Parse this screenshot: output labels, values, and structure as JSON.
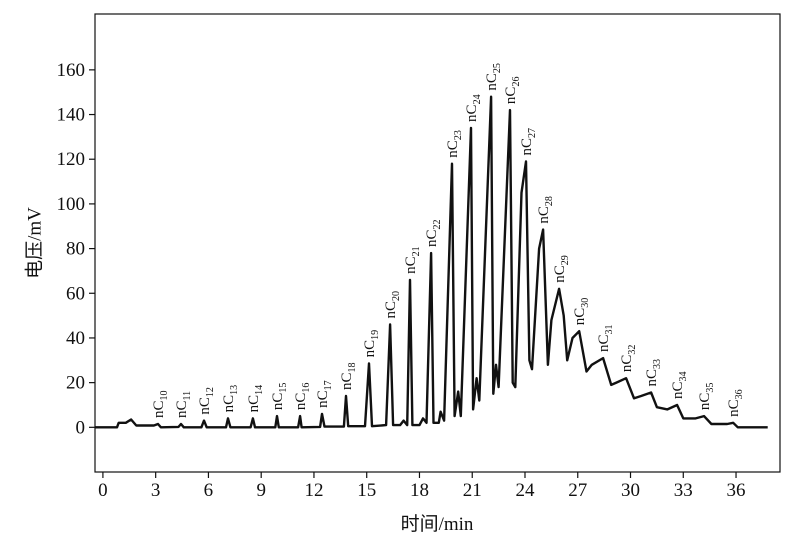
{
  "chart_data": {
    "type": "line",
    "xlabel": "时间/min",
    "ylabel": "电压/mV",
    "color": "#111111",
    "xlim": [
      -0.45,
      38.5
    ],
    "ylim": [
      -20,
      185
    ],
    "xticks": [
      0,
      3,
      6,
      9,
      12,
      15,
      18,
      21,
      24,
      27,
      30,
      33,
      36
    ],
    "yticks": [
      0,
      20,
      40,
      60,
      80,
      100,
      120,
      140,
      160
    ],
    "x": [
      -0.45,
      0.8,
      0.9,
      1.3,
      1.6,
      1.9,
      2.9,
      3.13,
      3.3,
      4.3,
      4.44,
      4.6,
      5.6,
      5.75,
      5.9,
      7.0,
      7.11,
      7.25,
      8.4,
      8.53,
      8.65,
      9.8,
      9.9,
      10.0,
      11.1,
      11.21,
      11.3,
      12.35,
      12.46,
      12.6,
      13.7,
      13.82,
      13.95,
      14.9,
      15.13,
      15.3,
      16.1,
      16.33,
      16.5,
      16.9,
      17.1,
      17.3,
      17.46,
      17.6,
      18.0,
      18.2,
      18.4,
      18.66,
      18.8,
      19.1,
      19.2,
      19.4,
      19.85,
      20.0,
      20.2,
      20.35,
      20.93,
      21.05,
      21.25,
      21.4,
      22.07,
      22.2,
      22.35,
      22.5,
      23.15,
      23.3,
      23.45,
      23.8,
      24.06,
      24.25,
      24.4,
      24.8,
      25.03,
      25.3,
      25.5,
      25.94,
      26.2,
      26.4,
      26.7,
      27.08,
      27.5,
      27.8,
      28.44,
      28.9,
      29.2,
      29.75,
      30.2,
      30.6,
      31.17,
      31.5,
      32.1,
      32.65,
      33.0,
      33.7,
      34.18,
      34.6,
      35.5,
      35.84,
      36.1,
      37.8
    ],
    "values": [
      0,
      0,
      2,
      2,
      3.5,
      0.8,
      0.8,
      1.5,
      0,
      0.2,
      1.5,
      0,
      0,
      3,
      0,
      0,
      4,
      0,
      0,
      4,
      0,
      0,
      5,
      0,
      0,
      5,
      0,
      0.2,
      6,
      0.3,
      0.3,
      14,
      0.5,
      0.5,
      28.6,
      0.5,
      1,
      46,
      1,
      1,
      3,
      1,
      66,
      1,
      1,
      4,
      2,
      78,
      2,
      2,
      7,
      3,
      118,
      5,
      16,
      5,
      134,
      8,
      22,
      12,
      148,
      15,
      28,
      18,
      142,
      20,
      18,
      105,
      119,
      30,
      26,
      80,
      88.5,
      28,
      48,
      62,
      50,
      30,
      40,
      43,
      25,
      28,
      31,
      19,
      20,
      22,
      13,
      14,
      15.6,
      9,
      8,
      10,
      4,
      4,
      5,
      1.5,
      1.5,
      2,
      0,
      0
    ],
    "annotations": [
      {
        "text": "nC",
        "sub": "10",
        "x": 3.13,
        "y": 1.5
      },
      {
        "text": "nC",
        "sub": "11",
        "x": 4.44,
        "y": 1.5
      },
      {
        "text": "nC",
        "sub": "12",
        "x": 5.75,
        "y": 3
      },
      {
        "text": "nC",
        "sub": "13",
        "x": 7.11,
        "y": 4
      },
      {
        "text": "nC",
        "sub": "14",
        "x": 8.53,
        "y": 4
      },
      {
        "text": "nC",
        "sub": "15",
        "x": 9.9,
        "y": 5
      },
      {
        "text": "nC",
        "sub": "16",
        "x": 11.21,
        "y": 5
      },
      {
        "text": "nC",
        "sub": "17",
        "x": 12.46,
        "y": 6
      },
      {
        "text": "nC",
        "sub": "18",
        "x": 13.82,
        "y": 14
      },
      {
        "text": "nC",
        "sub": "19",
        "x": 15.13,
        "y": 28.6
      },
      {
        "text": "nC",
        "sub": "20",
        "x": 16.33,
        "y": 46
      },
      {
        "text": "nC",
        "sub": "21",
        "x": 17.46,
        "y": 66
      },
      {
        "text": "nC",
        "sub": "22",
        "x": 18.66,
        "y": 78
      },
      {
        "text": "nC",
        "sub": "23",
        "x": 19.85,
        "y": 118
      },
      {
        "text": "nC",
        "sub": "24",
        "x": 20.93,
        "y": 134
      },
      {
        "text": "nC",
        "sub": "25",
        "x": 22.07,
        "y": 148
      },
      {
        "text": "nC",
        "sub": "26",
        "x": 23.15,
        "y": 142
      },
      {
        "text": "nC",
        "sub": "27",
        "x": 24.06,
        "y": 119
      },
      {
        "text": "nC",
        "sub": "28",
        "x": 25.03,
        "y": 88.5
      },
      {
        "text": "nC",
        "sub": "29",
        "x": 25.94,
        "y": 62
      },
      {
        "text": "nC",
        "sub": "30",
        "x": 27.08,
        "y": 43
      },
      {
        "text": "nC",
        "sub": "31",
        "x": 28.44,
        "y": 31
      },
      {
        "text": "nC",
        "sub": "32",
        "x": 29.75,
        "y": 22
      },
      {
        "text": "nC",
        "sub": "33",
        "x": 31.17,
        "y": 15.6
      },
      {
        "text": "nC",
        "sub": "34",
        "x": 32.65,
        "y": 10
      },
      {
        "text": "nC",
        "sub": "35",
        "x": 34.18,
        "y": 5
      },
      {
        "text": "nC",
        "sub": "36",
        "x": 35.84,
        "y": 2
      }
    ]
  }
}
